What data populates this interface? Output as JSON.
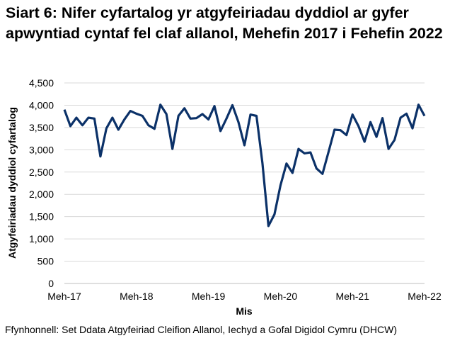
{
  "chart_data": {
    "type": "line",
    "title": "Siart 6: Nifer cyfartalog yr atgyfeiriadau dyddiol ar gyfer apwyntiad cyntaf fel claf allanol, Mehefin 2017 i Fehefin 2022",
    "xlabel": "Mis",
    "ylabel": "Atgyfeiriadau dyddiol cyfartalog",
    "ylim": [
      0,
      4500
    ],
    "yticks": [
      "0",
      "500",
      "1,000",
      "1,500",
      "2,000",
      "2,500",
      "3,000",
      "3,500",
      "4,000",
      "4,500"
    ],
    "xtick_labels": [
      "Meh-17",
      "Meh-18",
      "Meh-19",
      "Meh-20",
      "Meh-21",
      "Meh-22"
    ],
    "grid": "horizontal",
    "color": "#0B3168",
    "x_start": "Jun 2017",
    "x_end": "Jun 2022",
    "frequency": "monthly",
    "values": [
      3900,
      3530,
      3720,
      3550,
      3720,
      3700,
      2850,
      3480,
      3720,
      3450,
      3680,
      3870,
      3810,
      3760,
      3550,
      3470,
      4010,
      3800,
      3020,
      3760,
      3930,
      3700,
      3710,
      3800,
      3680,
      3980,
      3420,
      3700,
      4000,
      3620,
      3100,
      3790,
      3760,
      2700,
      1290,
      1550,
      2200,
      2690,
      2480,
      3020,
      2920,
      2940,
      2580,
      2460,
      2950,
      3450,
      3440,
      3330,
      3790,
      3530,
      3180,
      3620,
      3290,
      3710,
      3020,
      3220,
      3720,
      3810,
      3480,
      4010,
      3760
    ]
  },
  "source": "Ffynhonnell: Set Ddata Atgyfeiriad Cleifion Allanol, Iechyd a Gofal Digidol Cymru (DHCW)"
}
